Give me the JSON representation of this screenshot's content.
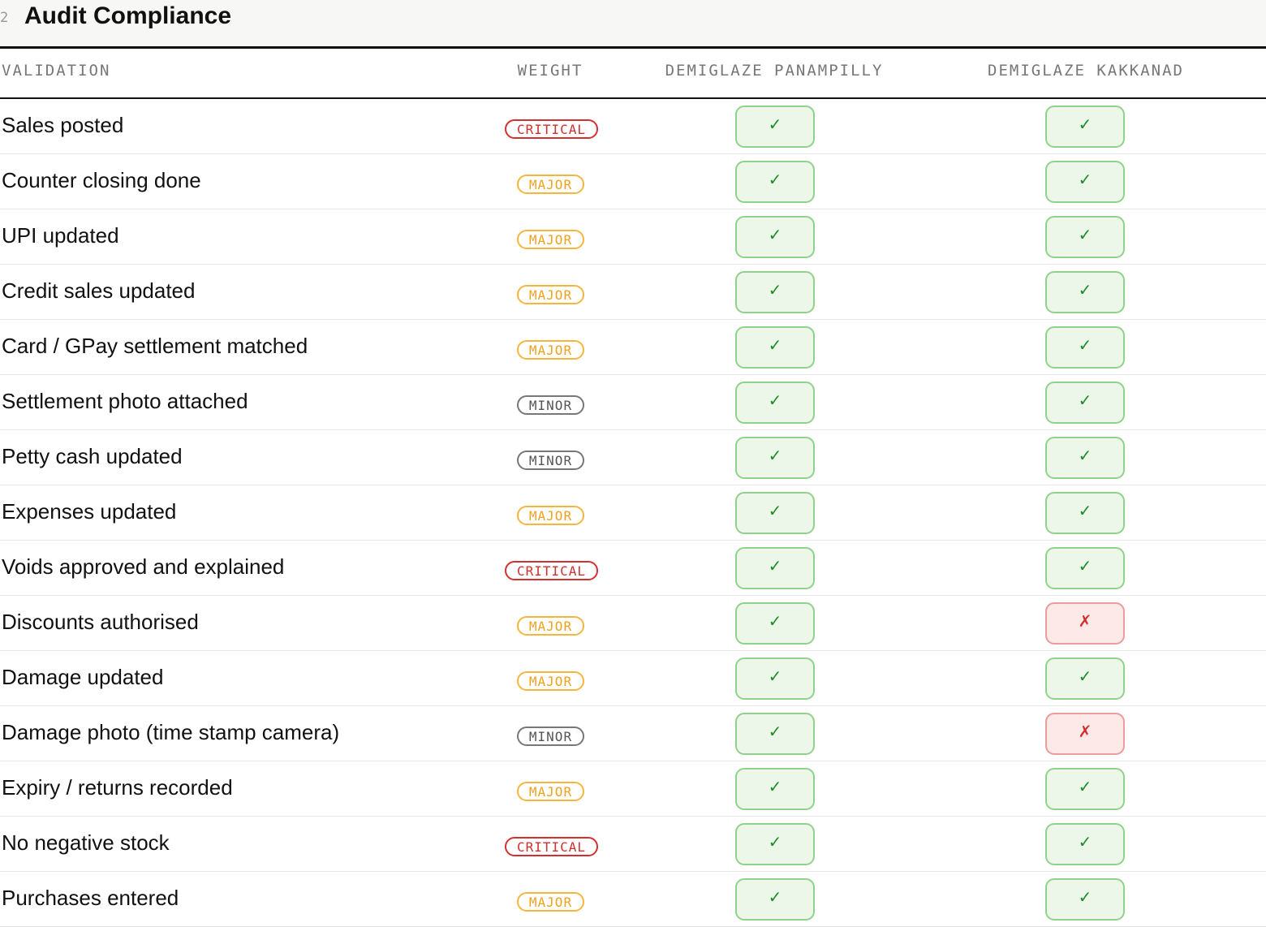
{
  "header": {
    "section_number": "2",
    "title": "Audit Compliance"
  },
  "columns": {
    "validation": "VALIDATION",
    "weight": "WEIGHT",
    "outlet_1": "DEMIGLAZE PANAMPILLY",
    "outlet_2": "DEMIGLAZE KAKKANAD"
  },
  "colors": {
    "critical": "#d32f2f",
    "major": "#f0a21f",
    "minor": "#555555",
    "pass": "#1e8c28",
    "fail": "#d32f2f"
  },
  "marks": {
    "pass": "✓",
    "fail": "✗"
  },
  "rows": [
    {
      "label": "Sales posted",
      "weight": "CRITICAL",
      "outlet_1": "pass",
      "outlet_2": "pass"
    },
    {
      "label": "Counter closing done",
      "weight": "MAJOR",
      "outlet_1": "pass",
      "outlet_2": "pass"
    },
    {
      "label": "UPI updated",
      "weight": "MAJOR",
      "outlet_1": "pass",
      "outlet_2": "pass"
    },
    {
      "label": "Credit sales updated",
      "weight": "MAJOR",
      "outlet_1": "pass",
      "outlet_2": "pass"
    },
    {
      "label": "Card / GPay settlement matched",
      "weight": "MAJOR",
      "outlet_1": "pass",
      "outlet_2": "pass"
    },
    {
      "label": "Settlement photo attached",
      "weight": "MINOR",
      "outlet_1": "pass",
      "outlet_2": "pass"
    },
    {
      "label": "Petty cash updated",
      "weight": "MINOR",
      "outlet_1": "pass",
      "outlet_2": "pass"
    },
    {
      "label": "Expenses updated",
      "weight": "MAJOR",
      "outlet_1": "pass",
      "outlet_2": "pass"
    },
    {
      "label": "Voids approved and explained",
      "weight": "CRITICAL",
      "outlet_1": "pass",
      "outlet_2": "pass"
    },
    {
      "label": "Discounts authorised",
      "weight": "MAJOR",
      "outlet_1": "pass",
      "outlet_2": "fail"
    },
    {
      "label": "Damage updated",
      "weight": "MAJOR",
      "outlet_1": "pass",
      "outlet_2": "pass"
    },
    {
      "label": "Damage photo (time stamp camera)",
      "weight": "MINOR",
      "outlet_1": "pass",
      "outlet_2": "fail"
    },
    {
      "label": "Expiry / returns recorded",
      "weight": "MAJOR",
      "outlet_1": "pass",
      "outlet_2": "pass"
    },
    {
      "label": "No negative stock",
      "weight": "CRITICAL",
      "outlet_1": "pass",
      "outlet_2": "pass"
    },
    {
      "label": "Purchases entered",
      "weight": "MAJOR",
      "outlet_1": "pass",
      "outlet_2": "pass"
    }
  ]
}
